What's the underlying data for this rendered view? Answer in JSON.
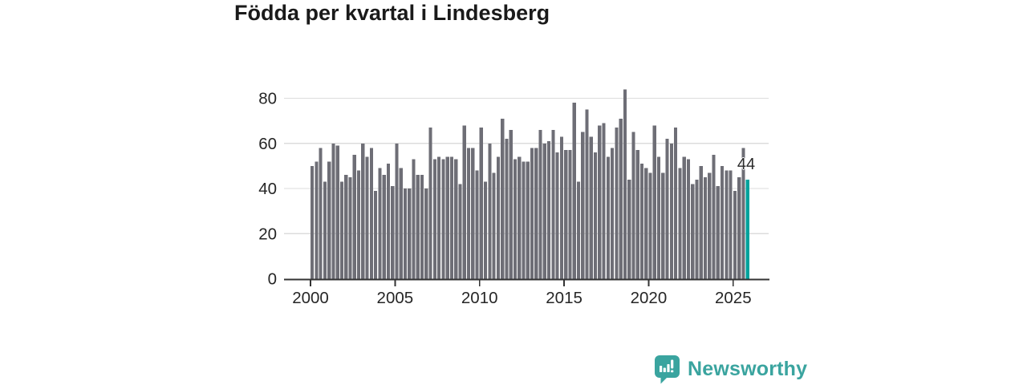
{
  "title": "Födda per kvartal i Lindesberg",
  "annotation": {
    "last_value_label": "44"
  },
  "logo": {
    "text": "Newsworthy",
    "icon": "newsworthy-speech-bubble-chart-icon"
  },
  "colors": {
    "bar": "#6e6e76",
    "highlight": "#00a29c",
    "axis": "#333333",
    "grid": "#dcdcdc",
    "title_text": "#1a1a1a",
    "tick_text": "#262626",
    "logo_teal": "#3aa49f"
  },
  "y_axis": {
    "ticks": [
      0,
      20,
      40,
      60,
      80
    ]
  },
  "x_axis": {
    "ticks": [
      2000,
      2005,
      2010,
      2015,
      2020,
      2025
    ]
  },
  "chart_data": {
    "type": "bar",
    "title": "Födda per kvartal i Lindesberg",
    "frequency": "quarterly",
    "start_period": "2000-Q1",
    "end_period": "2025-Q4",
    "series": [
      {
        "name": "Födda per kvartal",
        "values": [
          50,
          52,
          58,
          43,
          52,
          60,
          59,
          43,
          46,
          45,
          55,
          48,
          60,
          54,
          58,
          39,
          49,
          46,
          51,
          41,
          60,
          49,
          40,
          40,
          53,
          46,
          46,
          40,
          67,
          53,
          54,
          53,
          54,
          54,
          53,
          42,
          68,
          58,
          58,
          48,
          67,
          43,
          60,
          47,
          54,
          71,
          62,
          66,
          53,
          54,
          52,
          52,
          58,
          58,
          66,
          60,
          61,
          66,
          56,
          63,
          57,
          57,
          78,
          43,
          65,
          75,
          63,
          56,
          68,
          69,
          54,
          58,
          67,
          71,
          84,
          44,
          65,
          57,
          51,
          49,
          47,
          68,
          54,
          47,
          62,
          60,
          67,
          49,
          54,
          53,
          42,
          44,
          50,
          45,
          47,
          55,
          41,
          50,
          48,
          48,
          39,
          45,
          58,
          44
        ]
      }
    ],
    "highlighted_last_value": 44,
    "ylim": [
      0,
      85
    ],
    "yticks": [
      0,
      20,
      40,
      60,
      80
    ],
    "xticks": [
      2000,
      2005,
      2010,
      2015,
      2020,
      2025
    ],
    "grid": true,
    "legend_position": "none"
  }
}
